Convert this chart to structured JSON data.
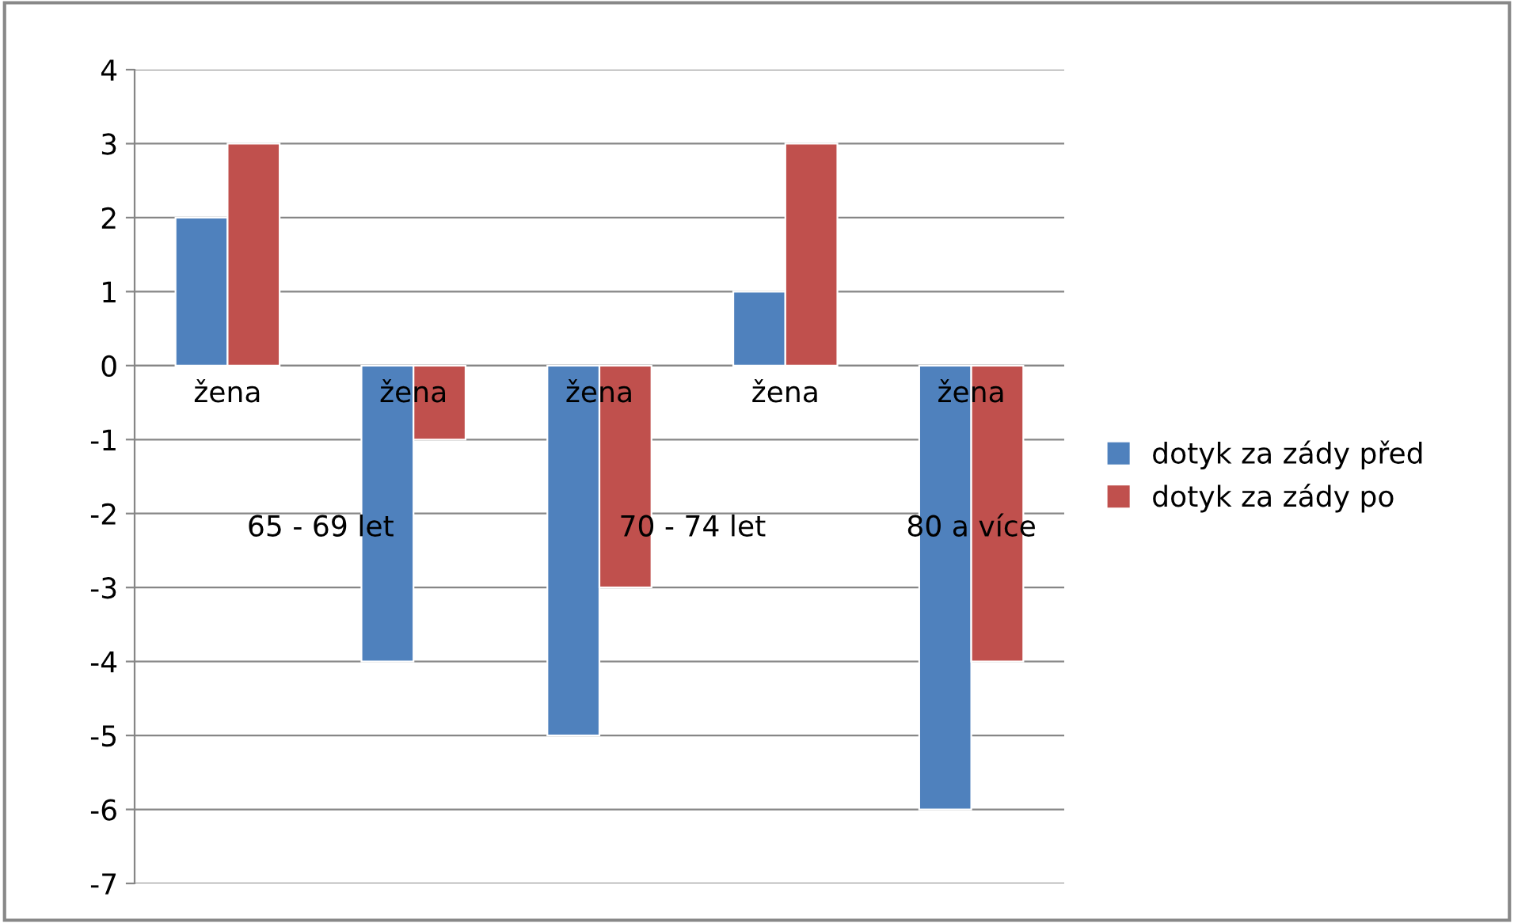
{
  "chart_data": {
    "type": "bar",
    "categories": [
      "žena",
      "žena",
      "žena",
      "žena",
      "žena"
    ],
    "series": [
      {
        "name": "dotyk za zády před",
        "color": "#4f81bd",
        "values": [
          2,
          -4,
          -5,
          1,
          -6
        ]
      },
      {
        "name": "dotyk za zády po",
        "color": "#c0504d",
        "values": [
          3,
          -1,
          -3,
          3,
          -4
        ]
      }
    ],
    "annotations": [
      "65 - 69 let",
      "70 - 74 let",
      "80 a více"
    ],
    "ylim": [
      -7,
      4
    ],
    "yticks": [
      -7,
      -6,
      -5,
      -4,
      -3,
      -2,
      -1,
      0,
      1,
      2,
      3,
      4
    ],
    "grid": "y",
    "legend": "right"
  }
}
